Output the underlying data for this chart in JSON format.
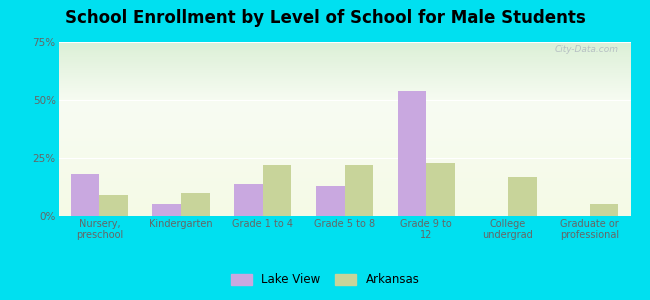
{
  "title": "School Enrollment by Level of School for Male Students",
  "categories": [
    "Nursery,\npreschool",
    "Kindergarten",
    "Grade 1 to 4",
    "Grade 5 to 8",
    "Grade 9 to\n12",
    "College\nundergrad",
    "Graduate or\nprofessional"
  ],
  "lake_view": [
    18.0,
    5.0,
    14.0,
    13.0,
    54.0,
    0.0,
    0.0
  ],
  "arkansas": [
    9.0,
    10.0,
    22.0,
    22.0,
    23.0,
    17.0,
    5.0
  ],
  "lake_view_color": "#c9a8e0",
  "arkansas_color": "#c8d49a",
  "background_outer": "#00e0f0",
  "ylim": [
    0,
    75
  ],
  "yticks": [
    0,
    25,
    50,
    75
  ],
  "ytick_labels": [
    "0%",
    "25%",
    "50%",
    "75%"
  ],
  "legend_lake_view": "Lake View",
  "legend_arkansas": "Arkansas",
  "title_fontsize": 12,
  "bar_width": 0.35,
  "watermark": "City-Data.com"
}
